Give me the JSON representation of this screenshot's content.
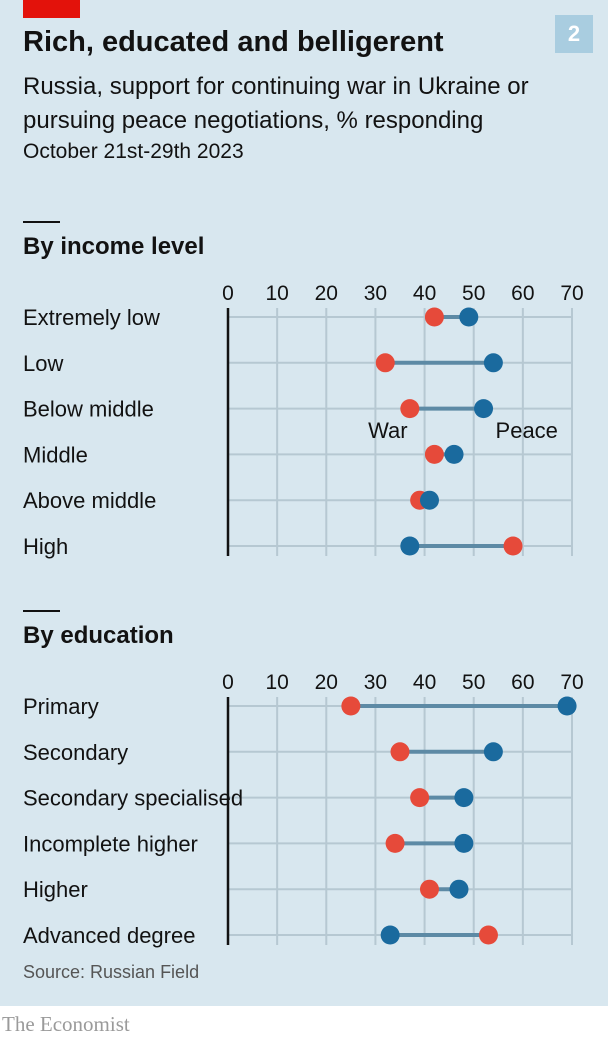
{
  "header": {
    "title": "Rich, educated and belligerent",
    "subtitle": "Russia, support for continuing war in Ukraine or pursuing peace negotiations, % responding",
    "date": "October 21st-29th 2023",
    "badge": "2"
  },
  "footer": {
    "source": "Source: Russian Field",
    "brand": "The Economist"
  },
  "colors": {
    "war": "#e64a3a",
    "peace": "#1a6a9e",
    "connector": "#5d8aa5",
    "grid": "#b6c8d2",
    "axis": "#121212"
  },
  "chart_data": [
    {
      "type": "dumbbell",
      "title": "By income level",
      "xlim": [
        0,
        70
      ],
      "xticks": [
        "0",
        "10",
        "20",
        "30",
        "40",
        "50",
        "60",
        "70"
      ],
      "legend": [
        {
          "name": "War",
          "category": "Below middle"
        },
        {
          "name": "Peace",
          "category": "Below middle"
        }
      ],
      "categories": [
        "Extremely low",
        "Low",
        "Below middle",
        "Middle",
        "Above middle",
        "High"
      ],
      "series": [
        {
          "name": "War",
          "values": [
            42,
            32,
            37,
            42,
            39,
            58
          ]
        },
        {
          "name": "Peace",
          "values": [
            49,
            54,
            52,
            46,
            41,
            37
          ]
        }
      ]
    },
    {
      "type": "dumbbell",
      "title": "By education",
      "xlim": [
        0,
        70
      ],
      "xticks": [
        "0",
        "10",
        "20",
        "30",
        "40",
        "50",
        "60",
        "70"
      ],
      "categories": [
        "Primary",
        "Secondary",
        "Secondary specialised",
        "Incomplete higher",
        "Higher",
        "Advanced degree"
      ],
      "series": [
        {
          "name": "War",
          "values": [
            25,
            35,
            39,
            34,
            41,
            53
          ]
        },
        {
          "name": "Peace",
          "values": [
            69,
            54,
            48,
            48,
            47,
            33
          ]
        }
      ]
    }
  ]
}
